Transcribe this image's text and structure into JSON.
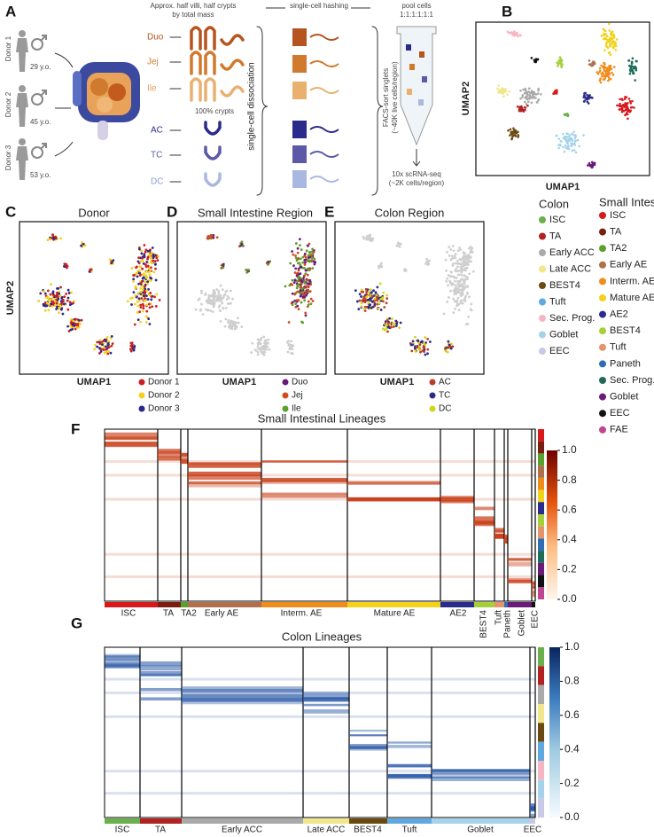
{
  "panel_a": {
    "label": "A",
    "donors": [
      {
        "name": "Donor 1",
        "age": "29 y.o."
      },
      {
        "name": "Donor 2",
        "age": "45 y.o."
      },
      {
        "name": "Donor 3",
        "age": "53 y.o."
      }
    ],
    "sampling_note": [
      "Approx. half villi, half crypts",
      "by total mass"
    ],
    "small_intestine_regions": [
      "Duo",
      "Jej",
      "Ile"
    ],
    "crypts_note": "100% crypts",
    "colon_regions": [
      "AC",
      "TC",
      "DC"
    ],
    "dissociation": "single-cell dissociation",
    "hashing": "single-cell hashing",
    "pool": [
      "pool cells",
      "1:1:1:1:1:1"
    ],
    "facs": [
      "FACS-sort singlets",
      "(~40K live cells/region)"
    ],
    "sequencing": [
      "10x scRNA-seq",
      "(~2K cells/region)"
    ]
  },
  "panel_b": {
    "label": "B",
    "x_axis": "UMAP1",
    "y_axis": "UMAP2"
  },
  "legend": {
    "colon": {
      "title": "Colon",
      "items": [
        {
          "name": "ISC",
          "color": "#6ab04c"
        },
        {
          "name": "TA",
          "color": "#b22222"
        },
        {
          "name": "Early ACC",
          "color": "#aaaaaa"
        },
        {
          "name": "Late ACC",
          "color": "#f0e68c"
        },
        {
          "name": "BEST4",
          "color": "#6b4a12"
        },
        {
          "name": "Tuft",
          "color": "#5fa8e0"
        },
        {
          "name": "Sec. Prog.",
          "color": "#f4b6c2"
        },
        {
          "name": "Goblet",
          "color": "#a7d3ea"
        },
        {
          "name": "EEC",
          "color": "#c9c9e6"
        }
      ]
    },
    "small_intestine": {
      "title": "Small Intestine",
      "items": [
        {
          "name": "ISC",
          "color": "#d7191c"
        },
        {
          "name": "TA",
          "color": "#7b1e12"
        },
        {
          "name": "TA2",
          "color": "#5aa02c"
        },
        {
          "name": "Early AE",
          "color": "#b0704a"
        },
        {
          "name": "Interm. AE",
          "color": "#f08c1a"
        },
        {
          "name": "Mature AE",
          "color": "#f2d21b"
        },
        {
          "name": "AE2",
          "color": "#2b2b8c"
        },
        {
          "name": "BEST4",
          "color": "#a6d03a"
        },
        {
          "name": "Tuft",
          "color": "#e6946a"
        },
        {
          "name": "Paneth",
          "color": "#2f6db5"
        },
        {
          "name": "Sec. Prog.",
          "color": "#1f6b5a"
        },
        {
          "name": "Goblet",
          "color": "#6a1b7a"
        },
        {
          "name": "EEC",
          "color": "#111111"
        },
        {
          "name": "FAE",
          "color": "#c0458f"
        }
      ]
    }
  },
  "panel_c": {
    "label": "C",
    "title": "Donor",
    "x_axis": "UMAP1",
    "y_axis": "UMAP2",
    "legend": [
      {
        "name": "Donor 1",
        "color": "#cc2020"
      },
      {
        "name": "Donor 2",
        "color": "#f2d21b"
      },
      {
        "name": "Donor 3",
        "color": "#2a2a8a"
      }
    ]
  },
  "panel_d": {
    "label": "D",
    "title": "Small Intestine Region",
    "x_axis": "UMAP1",
    "legend": [
      {
        "name": "Duo",
        "color": "#6a1b7a"
      },
      {
        "name": "Jej",
        "color": "#d44a1c"
      },
      {
        "name": "Ile",
        "color": "#5aa02c"
      }
    ]
  },
  "panel_e": {
    "label": "E",
    "title": "Colon Region",
    "x_axis": "UMAP1",
    "legend": [
      {
        "name": "AC",
        "color": "#c0392b"
      },
      {
        "name": "TC",
        "color": "#2b2b8c"
      },
      {
        "name": "DC",
        "color": "#d4d41b"
      }
    ]
  },
  "panel_f": {
    "label": "F",
    "title": "Small Intestinal Lineages",
    "lineages": [
      "ISC",
      "TA",
      "TA2",
      "Early AE",
      "Interm. AE",
      "Mature AE",
      "AE2",
      "BEST4",
      "Tuft",
      "Paneth",
      "Goblet",
      "EEC"
    ],
    "colorbar_ticks": [
      "1.0",
      "0.8",
      "0.6",
      "0.4",
      "0.2",
      "0.0"
    ]
  },
  "panel_g": {
    "label": "G",
    "title": "Colon Lineages",
    "lineages": [
      "ISC",
      "TA",
      "Early ACC",
      "Late ACC",
      "BEST4",
      "Tuft",
      "Goblet",
      "EEC"
    ],
    "colorbar_ticks": [
      "1.0",
      "0.8",
      "0.6",
      "0.4",
      "0.2",
      "0.0"
    ]
  }
}
